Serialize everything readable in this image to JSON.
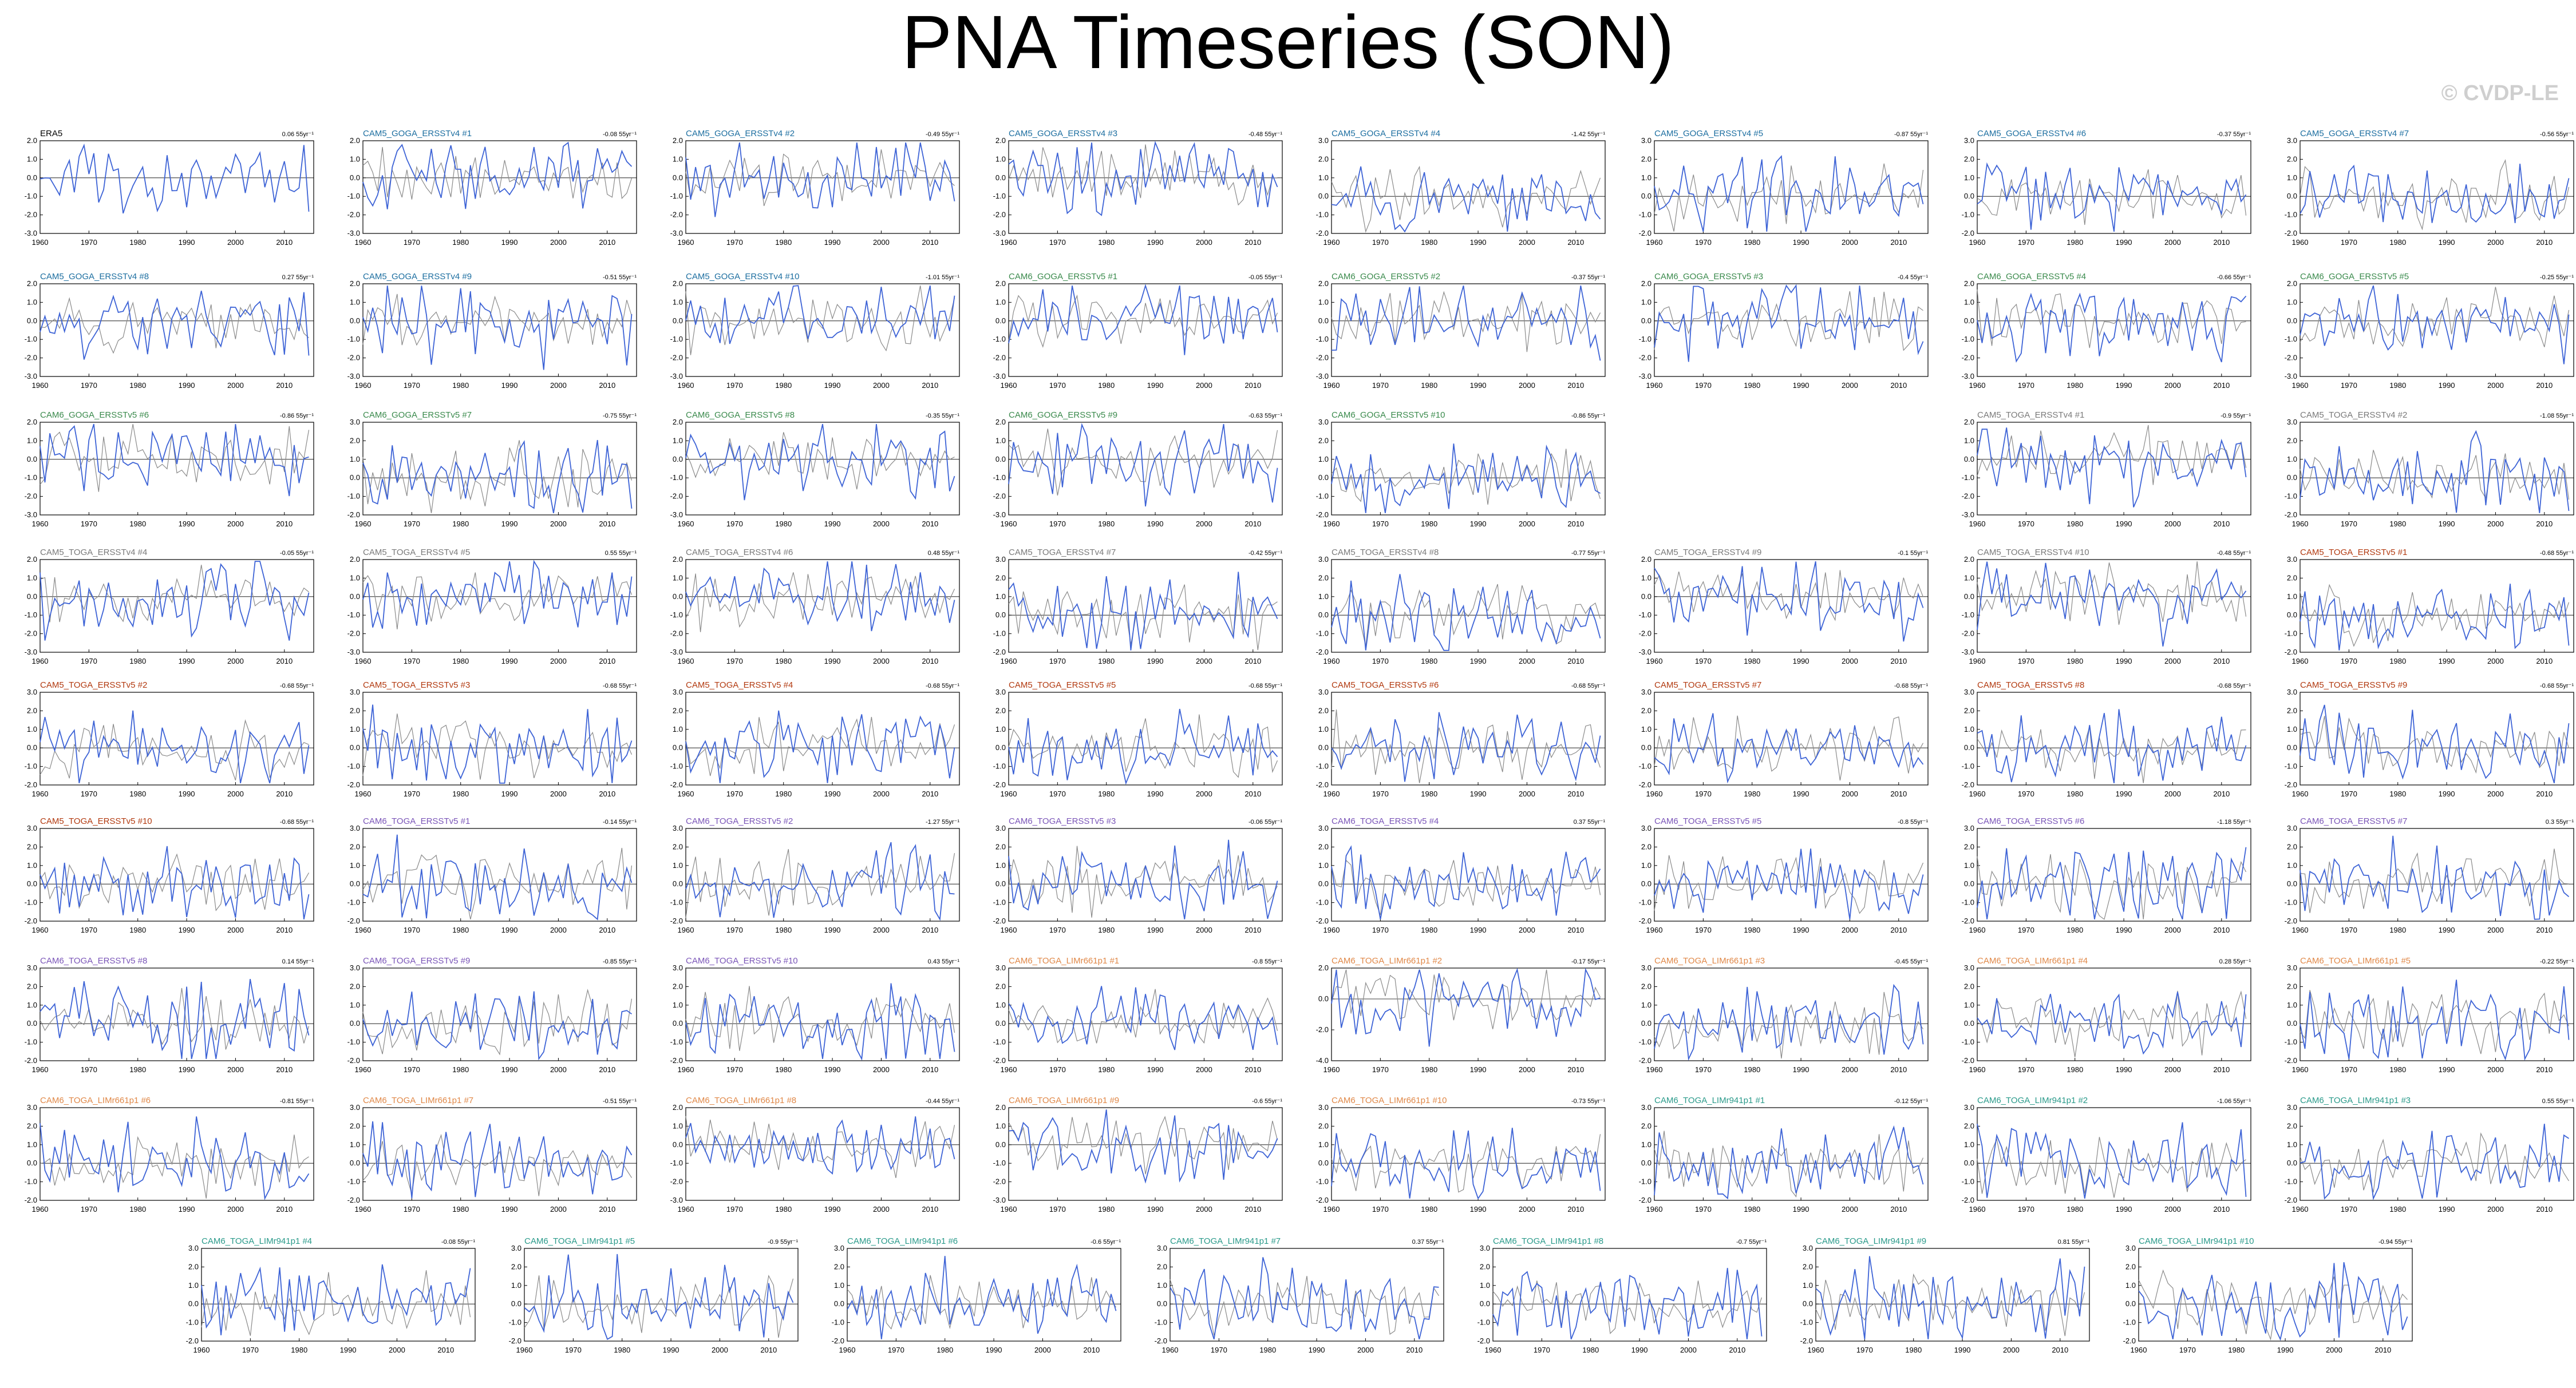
{
  "title": "PNA Timeseries (SON)",
  "watermark": "© CVDP-LE",
  "colors": {
    "obs_line": "#3d63d6",
    "ensemble_line": "#8a8a8a",
    "zero_line": "#000000",
    "frame": "#000000",
    "title_era5": "#000000",
    "title_cam5_goga_ersstv4": "#1c6ea0",
    "title_cam6_goga_ersstv5": "#3a8a4c",
    "title_cam5_toga_ersstv4": "#7a7a7a",
    "title_cam5_toga_ersstv5": "#b23a10",
    "title_cam6_toga_ersstv5": "#7a55b8",
    "title_cam6_toga_lim661": "#e08848",
    "title_cam6_toga_lim941": "#2a9a8a"
  },
  "chart_data": {
    "type": "line",
    "x_ticks": [
      1960,
      1970,
      1980,
      1990,
      2000,
      2010
    ],
    "x_range": [
      1960,
      2016
    ],
    "y_tick_sets": {
      "A": [
        2.0,
        1.0,
        0.0,
        -1.0,
        -2.0,
        -3.0
      ],
      "B": [
        3.0,
        2.0,
        1.0,
        0.0,
        -1.0,
        -2.0
      ],
      "C": [
        2.0,
        0.0,
        -2.0,
        -4.0
      ]
    },
    "panels": [
      {
        "title": "ERA5",
        "group": "era5",
        "rate": "0.06 55yr⁻¹",
        "yset": "A",
        "seed": 1
      },
      {
        "title": "CAM5_GOGA_ERSSTv4 #1",
        "group": "cam5_goga_ersstv4",
        "rate": "-0.08 55yr⁻¹",
        "yset": "A",
        "seed": 2
      },
      {
        "title": "CAM5_GOGA_ERSSTv4 #2",
        "group": "cam5_goga_ersstv4",
        "rate": "-0.49 55yr⁻¹",
        "yset": "A",
        "seed": 3
      },
      {
        "title": "CAM5_GOGA_ERSSTv4 #3",
        "group": "cam5_goga_ersstv4",
        "rate": "-0.48 55yr⁻¹",
        "yset": "A",
        "seed": 4
      },
      {
        "title": "CAM5_GOGA_ERSSTv4 #4",
        "group": "cam5_goga_ersstv4",
        "rate": "-1.42 55yr⁻¹",
        "yset": "B",
        "seed": 5
      },
      {
        "title": "CAM5_GOGA_ERSSTv4 #5",
        "group": "cam5_goga_ersstv4",
        "rate": "-0.87 55yr⁻¹",
        "yset": "B",
        "seed": 6
      },
      {
        "title": "CAM5_GOGA_ERSSTv4 #6",
        "group": "cam5_goga_ersstv4",
        "rate": "-0.37 55yr⁻¹",
        "yset": "B",
        "seed": 7
      },
      {
        "title": "CAM5_GOGA_ERSSTv4 #7",
        "group": "cam5_goga_ersstv4",
        "rate": "-0.56 55yr⁻¹",
        "yset": "B",
        "seed": 8
      },
      {
        "title": "CAM5_GOGA_ERSSTv4 #8",
        "group": "cam5_goga_ersstv4",
        "rate": "0.27 55yr⁻¹",
        "yset": "A",
        "seed": 9
      },
      {
        "title": "CAM5_GOGA_ERSSTv4 #9",
        "group": "cam5_goga_ersstv4",
        "rate": "-0.51 55yr⁻¹",
        "yset": "A",
        "seed": 10
      },
      {
        "title": "CAM5_GOGA_ERSSTv4 #10",
        "group": "cam5_goga_ersstv4",
        "rate": "-1.01 55yr⁻¹",
        "yset": "A",
        "seed": 11
      },
      {
        "title": "CAM6_GOGA_ERSSTv5 #1",
        "group": "cam6_goga_ersstv5",
        "rate": "-0.05 55yr⁻¹",
        "yset": "A",
        "seed": 12
      },
      {
        "title": "CAM6_GOGA_ERSSTv5 #2",
        "group": "cam6_goga_ersstv5",
        "rate": "-0.37 55yr⁻¹",
        "yset": "A",
        "seed": 13
      },
      {
        "title": "CAM6_GOGA_ERSSTv5 #3",
        "group": "cam6_goga_ersstv5",
        "rate": "-0.4 55yr⁻¹",
        "yset": "A",
        "seed": 14
      },
      {
        "title": "CAM6_GOGA_ERSSTv5 #4",
        "group": "cam6_goga_ersstv5",
        "rate": "-0.66 55yr⁻¹",
        "yset": "A",
        "seed": 15
      },
      {
        "title": "CAM6_GOGA_ERSSTv5 #5",
        "group": "cam6_goga_ersstv5",
        "rate": "-0.25 55yr⁻¹",
        "yset": "A",
        "seed": 16
      },
      {
        "title": "CAM6_GOGA_ERSSTv5 #6",
        "group": "cam6_goga_ersstv5",
        "rate": "-0.86 55yr⁻¹",
        "yset": "A",
        "seed": 17
      },
      {
        "title": "CAM6_GOGA_ERSSTv5 #7",
        "group": "cam6_goga_ersstv5",
        "rate": "-0.75 55yr⁻¹",
        "yset": "B",
        "seed": 18
      },
      {
        "title": "CAM6_GOGA_ERSSTv5 #8",
        "group": "cam6_goga_ersstv5",
        "rate": "-0.35 55yr⁻¹",
        "yset": "A",
        "seed": 19
      },
      {
        "title": "CAM6_GOGA_ERSSTv5 #9",
        "group": "cam6_goga_ersstv5",
        "rate": "-0.63 55yr⁻¹",
        "yset": "A",
        "seed": 20
      },
      {
        "title": "CAM6_GOGA_ERSSTv5 #10",
        "group": "cam6_goga_ersstv5",
        "rate": "-0.86 55yr⁻¹",
        "yset": "B",
        "seed": 21
      },
      {
        "title": "CAM5_TOGA_ERSSTv4 #1",
        "group": "cam5_toga_ersstv4",
        "rate": "-0.9 55yr⁻¹",
        "yset": "A",
        "seed": 22
      },
      {
        "title": "CAM5_TOGA_ERSSTv4 #2",
        "group": "cam5_toga_ersstv4",
        "rate": "-1.08 55yr⁻¹",
        "yset": "B",
        "seed": 23
      },
      {
        "title": "CAM5_TOGA_ERSSTv4 #4",
        "group": "cam5_toga_ersstv4",
        "rate": "-0.05 55yr⁻¹",
        "yset": "A",
        "seed": 24
      },
      {
        "title": "CAM5_TOGA_ERSSTv4 #5",
        "group": "cam5_toga_ersstv4",
        "rate": "0.55 55yr⁻¹",
        "yset": "A",
        "seed": 25
      },
      {
        "title": "CAM5_TOGA_ERSSTv4 #6",
        "group": "cam5_toga_ersstv4",
        "rate": "0.48 55yr⁻¹",
        "yset": "A",
        "seed": 26
      },
      {
        "title": "CAM5_TOGA_ERSSTv4 #7",
        "group": "cam5_toga_ersstv4",
        "rate": "-0.42 55yr⁻¹",
        "yset": "B",
        "seed": 27
      },
      {
        "title": "CAM5_TOGA_ERSSTv4 #8",
        "group": "cam5_toga_ersstv4",
        "rate": "-0.77 55yr⁻¹",
        "yset": "B",
        "seed": 28
      },
      {
        "title": "CAM5_TOGA_ERSSTv4 #9",
        "group": "cam5_toga_ersstv4",
        "rate": "-0.1 55yr⁻¹",
        "yset": "A",
        "seed": 29
      },
      {
        "title": "CAM5_TOGA_ERSSTv4 #10",
        "group": "cam5_toga_ersstv4",
        "rate": "-0.48 55yr⁻¹",
        "yset": "A",
        "seed": 30
      },
      {
        "title": "CAM5_TOGA_ERSSTv5 #1",
        "group": "cam5_toga_ersstv5",
        "rate": "-0.68 55yr⁻¹",
        "yset": "B",
        "seed": 31
      },
      {
        "title": "CAM5_TOGA_ERSSTv5 #2",
        "group": "cam5_toga_ersstv5",
        "rate": "-0.68 55yr⁻¹",
        "yset": "B",
        "seed": 32
      },
      {
        "title": "CAM5_TOGA_ERSSTv5 #3",
        "group": "cam5_toga_ersstv5",
        "rate": "-0.68 55yr⁻¹",
        "yset": "B",
        "seed": 33
      },
      {
        "title": "CAM5_TOGA_ERSSTv5 #4",
        "group": "cam5_toga_ersstv5",
        "rate": "-0.68 55yr⁻¹",
        "yset": "B",
        "seed": 34
      },
      {
        "title": "CAM5_TOGA_ERSSTv5 #5",
        "group": "cam5_toga_ersstv5",
        "rate": "-0.68 55yr⁻¹",
        "yset": "B",
        "seed": 35
      },
      {
        "title": "CAM5_TOGA_ERSSTv5 #6",
        "group": "cam5_toga_ersstv5",
        "rate": "-0.68 55yr⁻¹",
        "yset": "B",
        "seed": 36
      },
      {
        "title": "CAM5_TOGA_ERSSTv5 #7",
        "group": "cam5_toga_ersstv5",
        "rate": "-0.68 55yr⁻¹",
        "yset": "B",
        "seed": 37
      },
      {
        "title": "CAM5_TOGA_ERSSTv5 #8",
        "group": "cam5_toga_ersstv5",
        "rate": "-0.68 55yr⁻¹",
        "yset": "B",
        "seed": 38
      },
      {
        "title": "CAM5_TOGA_ERSSTv5 #9",
        "group": "cam5_toga_ersstv5",
        "rate": "-0.68 55yr⁻¹",
        "yset": "B",
        "seed": 39
      },
      {
        "title": "CAM5_TOGA_ERSSTv5 #10",
        "group": "cam5_toga_ersstv5",
        "rate": "-0.68 55yr⁻¹",
        "yset": "B",
        "seed": 40
      },
      {
        "title": "CAM6_TOGA_ERSSTv5 #1",
        "group": "cam6_toga_ersstv5",
        "rate": "-0.14 55yr⁻¹",
        "yset": "B",
        "seed": 41
      },
      {
        "title": "CAM6_TOGA_ERSSTv5 #2",
        "group": "cam6_toga_ersstv5",
        "rate": "-1.27 55yr⁻¹",
        "yset": "B",
        "seed": 42
      },
      {
        "title": "CAM6_TOGA_ERSSTv5 #3",
        "group": "cam6_toga_ersstv5",
        "rate": "-0.06 55yr⁻¹",
        "yset": "B",
        "seed": 43
      },
      {
        "title": "CAM6_TOGA_ERSSTv5 #4",
        "group": "cam6_toga_ersstv5",
        "rate": "0.37 55yr⁻¹",
        "yset": "B",
        "seed": 44
      },
      {
        "title": "CAM6_TOGA_ERSSTv5 #5",
        "group": "cam6_toga_ersstv5",
        "rate": "-0.8 55yr⁻¹",
        "yset": "B",
        "seed": 45
      },
      {
        "title": "CAM6_TOGA_ERSSTv5 #6",
        "group": "cam6_toga_ersstv5",
        "rate": "-1.18 55yr⁻¹",
        "yset": "B",
        "seed": 46
      },
      {
        "title": "CAM6_TOGA_ERSSTv5 #7",
        "group": "cam6_toga_ersstv5",
        "rate": "0.3 55yr⁻¹",
        "yset": "B",
        "seed": 47
      },
      {
        "title": "CAM6_TOGA_ERSSTv5 #8",
        "group": "cam6_toga_ersstv5",
        "rate": "0.14 55yr⁻¹",
        "yset": "B",
        "seed": 48
      },
      {
        "title": "CAM6_TOGA_ERSSTv5 #9",
        "group": "cam6_toga_ersstv5",
        "rate": "-0.85 55yr⁻¹",
        "yset": "B",
        "seed": 49
      },
      {
        "title": "CAM6_TOGA_ERSSTv5 #10",
        "group": "cam6_toga_ersstv5",
        "rate": "0.43 55yr⁻¹",
        "yset": "B",
        "seed": 50
      },
      {
        "title": "CAM6_TOGA_LIMr661p1 #1",
        "group": "cam6_toga_lim661",
        "rate": "-0.8 55yr⁻¹",
        "yset": "B",
        "seed": 51
      },
      {
        "title": "CAM6_TOGA_LIMr661p1 #2",
        "group": "cam6_toga_lim661",
        "rate": "-0.17 55yr⁻¹",
        "yset": "C",
        "seed": 52
      },
      {
        "title": "CAM6_TOGA_LIMr661p1 #3",
        "group": "cam6_toga_lim661",
        "rate": "-0.45 55yr⁻¹",
        "yset": "B",
        "seed": 53
      },
      {
        "title": "CAM6_TOGA_LIMr661p1 #4",
        "group": "cam6_toga_lim661",
        "rate": "0.28 55yr⁻¹",
        "yset": "B",
        "seed": 54
      },
      {
        "title": "CAM6_TOGA_LIMr661p1 #5",
        "group": "cam6_toga_lim661",
        "rate": "-0.22 55yr⁻¹",
        "yset": "B",
        "seed": 55
      },
      {
        "title": "CAM6_TOGA_LIMr661p1 #6",
        "group": "cam6_toga_lim661",
        "rate": "-0.81 55yr⁻¹",
        "yset": "B",
        "seed": 56
      },
      {
        "title": "CAM6_TOGA_LIMr661p1 #7",
        "group": "cam6_toga_lim661",
        "rate": "-0.51 55yr⁻¹",
        "yset": "B",
        "seed": 57
      },
      {
        "title": "CAM6_TOGA_LIMr661p1 #8",
        "group": "cam6_toga_lim661",
        "rate": "-0.44 55yr⁻¹",
        "yset": "A",
        "seed": 58
      },
      {
        "title": "CAM6_TOGA_LIMr661p1 #9",
        "group": "cam6_toga_lim661",
        "rate": "-0.6 55yr⁻¹",
        "yset": "A",
        "seed": 59
      },
      {
        "title": "CAM6_TOGA_LIMr661p1 #10",
        "group": "cam6_toga_lim661",
        "rate": "-0.73 55yr⁻¹",
        "yset": "B",
        "seed": 60
      },
      {
        "title": "CAM6_TOGA_LIMr941p1 #1",
        "group": "cam6_toga_lim941",
        "rate": "-0.12 55yr⁻¹",
        "yset": "B",
        "seed": 61
      },
      {
        "title": "CAM6_TOGA_LIMr941p1 #2",
        "group": "cam6_toga_lim941",
        "rate": "-1.06 55yr⁻¹",
        "yset": "B",
        "seed": 62
      },
      {
        "title": "CAM6_TOGA_LIMr941p1 #3",
        "group": "cam6_toga_lim941",
        "rate": "0.55 55yr⁻¹",
        "yset": "B",
        "seed": 63
      },
      {
        "title": "CAM6_TOGA_LIMr941p1 #4",
        "group": "cam6_toga_lim941",
        "rate": "-0.08 55yr⁻¹",
        "yset": "B",
        "seed": 64
      },
      {
        "title": "CAM6_TOGA_LIMr941p1 #5",
        "group": "cam6_toga_lim941",
        "rate": "-0.9 55yr⁻¹",
        "yset": "B",
        "seed": 65
      },
      {
        "title": "CAM6_TOGA_LIMr941p1 #6",
        "group": "cam6_toga_lim941",
        "rate": "-0.6 55yr⁻¹",
        "yset": "B",
        "seed": 66
      },
      {
        "title": "CAM6_TOGA_LIMr941p1 #7",
        "group": "cam6_toga_lim941",
        "rate": "0.37 55yr⁻¹",
        "yset": "B",
        "seed": 67
      },
      {
        "title": "CAM6_TOGA_LIMr941p1 #8",
        "group": "cam6_toga_lim941",
        "rate": "-0.7 55yr⁻¹",
        "yset": "B",
        "seed": 68
      },
      {
        "title": "CAM6_TOGA_LIMr941p1 #9",
        "group": "cam6_toga_lim941",
        "rate": "0.81 55yr⁻¹",
        "yset": "B",
        "seed": 69
      },
      {
        "title": "CAM6_TOGA_LIMr941p1 #10",
        "group": "cam6_toga_lim941",
        "rate": "-0.94 55yr⁻¹",
        "yset": "B",
        "seed": 70
      }
    ]
  }
}
